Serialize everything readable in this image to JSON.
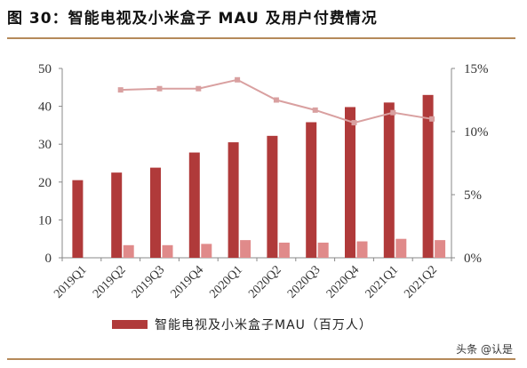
{
  "figure_title": "图 30：智能电视及小米盒子 MAU 及用户付费情况",
  "watermark": "头条 @认是",
  "colors": {
    "bar": "#b03a3a",
    "small_bar": "#e08a8a",
    "line": "#d9a0a0",
    "rule": "#b58a5a",
    "axis": "#888888",
    "text": "#333333"
  },
  "chart_data": {
    "type": "bar",
    "categories": [
      "2019Q1",
      "2019Q2",
      "2019Q3",
      "2019Q4",
      "2020Q1",
      "2020Q2",
      "2020Q3",
      "2020Q4",
      "2021Q1",
      "2021Q2"
    ],
    "ylim": [
      0,
      50
    ],
    "y_ticks": [
      "0",
      "10",
      "20",
      "30",
      "40",
      "50"
    ],
    "y2lim": [
      0,
      15
    ],
    "y2_ticks": [
      "0%",
      "5%",
      "10%",
      "15%"
    ],
    "series": [
      {
        "name": "智能电视及小米盒子MAU（百万人）",
        "type": "bar",
        "axis": "left",
        "values": [
          20.5,
          22.5,
          23.8,
          27.8,
          30.5,
          32.2,
          35.8,
          39.8,
          41.0,
          43.0
        ]
      },
      {
        "type": "bar",
        "axis": "right",
        "values": [
          null,
          1.0,
          1.0,
          1.1,
          1.4,
          1.2,
          1.2,
          1.3,
          1.5,
          1.4
        ]
      },
      {
        "type": "line",
        "axis": "right",
        "values": [
          null,
          13.3,
          13.4,
          13.4,
          14.1,
          12.5,
          11.7,
          10.7,
          11.5,
          11.0
        ]
      }
    ],
    "legend_position": "bottom-center"
  }
}
